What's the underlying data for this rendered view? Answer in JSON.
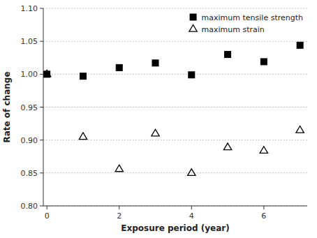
{
  "chart_data": {
    "type": "scatter",
    "xlabel": "Exposure period (year)",
    "ylabel": "Rate of change",
    "xlim": [
      -0.1,
      7.2
    ],
    "ylim": [
      0.8,
      1.1
    ],
    "xticks": [
      0,
      2,
      4,
      6
    ],
    "yticks": [
      {
        "value": 0.8,
        "label": "0.80"
      },
      0.85,
      {
        "value": 0.9,
        "label": "0.90"
      },
      0.95,
      {
        "value": 1.0,
        "label": "1.00"
      },
      1.05,
      {
        "value": 1.1,
        "label": "1.10"
      }
    ],
    "grid": "y",
    "legend": "upper right",
    "series": [
      {
        "name": "maximum tensile strength",
        "color": "#000000",
        "marker": "square",
        "x": [
          0,
          1,
          2,
          3,
          4,
          5,
          6,
          7
        ],
        "values": [
          1.0,
          0.997,
          1.01,
          1.017,
          0.999,
          1.03,
          1.019,
          1.044
        ]
      },
      {
        "name": "maximum strain",
        "color": "#000000",
        "marker": "open-triangle",
        "x": [
          0,
          1,
          2,
          3,
          4,
          5,
          6,
          7
        ],
        "values": [
          1.0,
          0.905,
          0.856,
          0.91,
          0.85,
          0.889,
          0.884,
          0.915
        ]
      }
    ]
  }
}
